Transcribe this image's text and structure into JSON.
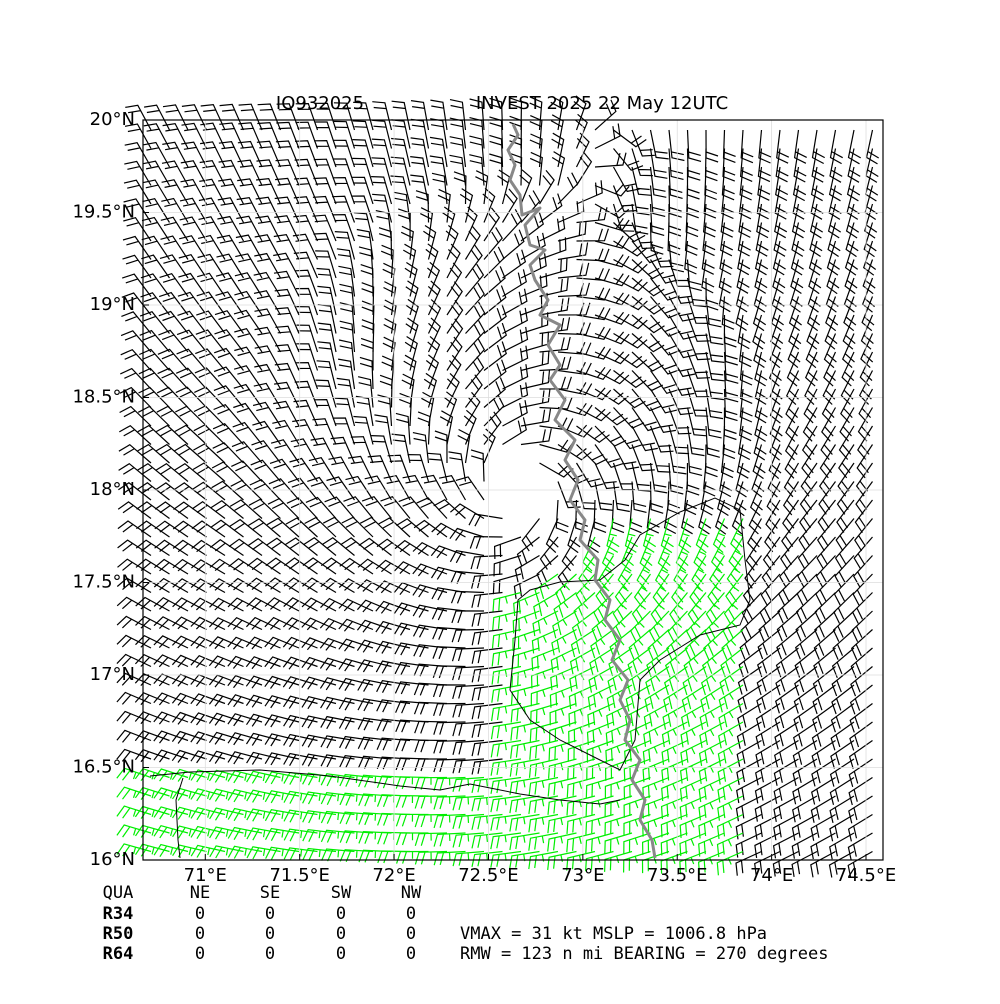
{
  "header": {
    "storm_id": "IO932025",
    "title": "INVEST 2025 22 May 12UTC"
  },
  "map": {
    "xlim": [
      70.67,
      74.59
    ],
    "ylim": [
      16,
      20
    ],
    "xticks": [
      {
        "value": 71,
        "label": "71°E"
      },
      {
        "value": 71.5,
        "label": "71.5°E"
      },
      {
        "value": 72,
        "label": "72°E"
      },
      {
        "value": 72.5,
        "label": "72.5°E"
      },
      {
        "value": 73,
        "label": "73°E"
      },
      {
        "value": 73.5,
        "label": "73.5°E"
      },
      {
        "value": 74,
        "label": "74°E"
      },
      {
        "value": 74.5,
        "label": "74.5°E"
      }
    ],
    "yticks": [
      {
        "value": 16,
        "label": "16°N"
      },
      {
        "value": 16.5,
        "label": "16.5°N"
      },
      {
        "value": 17,
        "label": "17°N"
      },
      {
        "value": 17.5,
        "label": "17.5°N"
      },
      {
        "value": 18,
        "label": "18°N"
      },
      {
        "value": 18.5,
        "label": "18.5°N"
      },
      {
        "value": 19,
        "label": "19°N"
      },
      {
        "value": 19.5,
        "label": "19.5°N"
      },
      {
        "value": 20,
        "label": "20°N"
      }
    ]
  },
  "table": {
    "header": [
      "QUA",
      "NE",
      "SE",
      "SW",
      "NW"
    ],
    "rows": [
      [
        "R34",
        0,
        0,
        0,
        0
      ],
      [
        "R50",
        0,
        0,
        0,
        0
      ],
      [
        "R64",
        0,
        0,
        0,
        0
      ]
    ]
  },
  "info": [
    "VMAX =  31 kt MSLP = 1006.8 hPa",
    "RMW = 123 n mi BEARING = 270 degrees"
  ]
}
